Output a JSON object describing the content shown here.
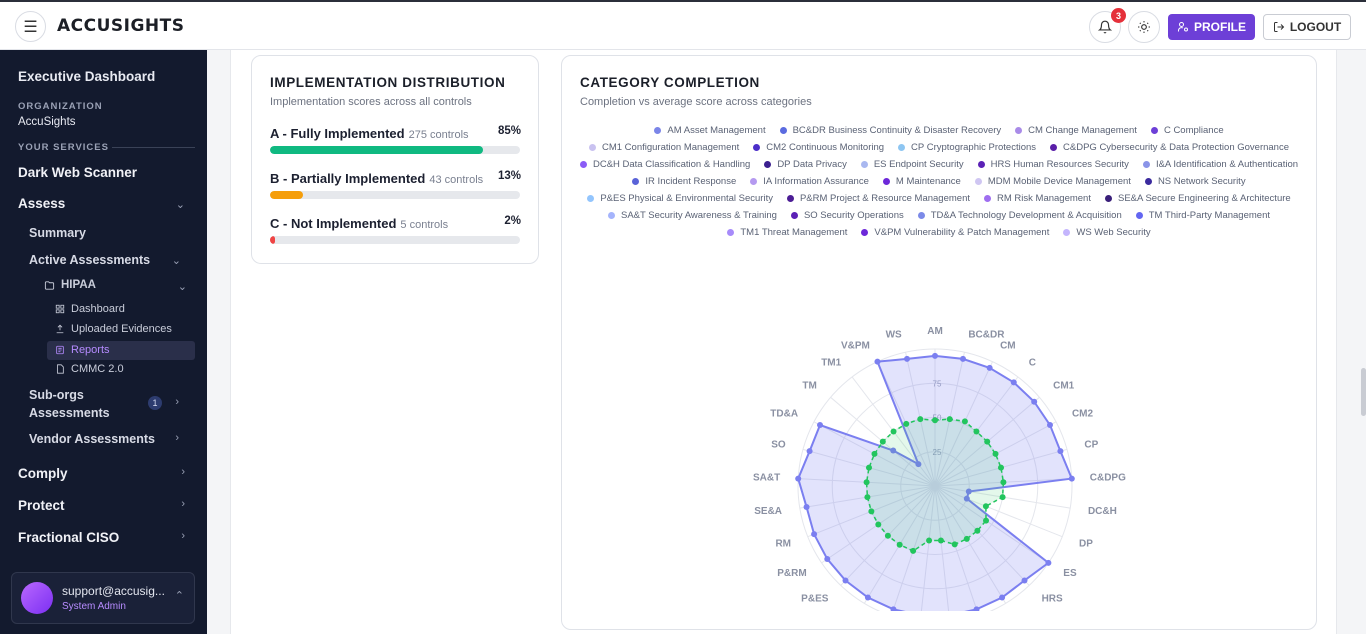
{
  "header": {
    "logo": "ACCUSIGHTS",
    "notification_count": "3",
    "profile_label": "PROFILE",
    "logout_label": "LOGOUT"
  },
  "sidebar": {
    "title": "Executive Dashboard",
    "org_label": "ORGANIZATION",
    "org_name": "AccuSights",
    "services_label": "YOUR SERVICES",
    "dark_web": "Dark Web Scanner",
    "assess": "Assess",
    "summary": "Summary",
    "active_assessments": "Active Assessments",
    "hipaa": "HIPAA",
    "dashboard": "Dashboard",
    "uploaded_evidences": "Uploaded Evidences",
    "reports": "Reports",
    "cmmc": "CMMC 2.0",
    "suborgs": "Sub-orgs\nAssessments",
    "suborgs_line1": "Sub-orgs",
    "suborgs_line2": "Assessments",
    "suborgs_count": "1",
    "vendor": "Vendor Assessments",
    "comply": "Comply",
    "protect": "Protect",
    "fractional": "Fractional CISO",
    "user_email": "support@accusig...",
    "user_role": "System Admin"
  },
  "impl": {
    "title": "IMPLEMENTATION DISTRIBUTION",
    "subtitle": "Implementation scores across all controls",
    "rows": [
      {
        "label": "A - Fully Implemented",
        "count": "275 controls",
        "pct": "85%",
        "value": 0.85,
        "color": "#10b981"
      },
      {
        "label": "B - Partially Implemented",
        "count": "43 controls",
        "pct": "13%",
        "value": 0.13,
        "color": "#f59e0b"
      },
      {
        "label": "C - Not Implemented",
        "count": "5 controls",
        "pct": "2%",
        "value": 0.02,
        "color": "#ef4444"
      }
    ]
  },
  "category": {
    "title": "CATEGORY COMPLETION",
    "subtitle": "Completion vs average score across categories",
    "legend": [
      {
        "label": "AM Asset Management",
        "color": "#7b85e8"
      },
      {
        "label": "BC&DR Business Continuity & Disaster Recovery",
        "color": "#5b6be0"
      },
      {
        "label": "CM Change Management",
        "color": "#a98be8"
      },
      {
        "label": "C Compliance",
        "color": "#6d3fd7"
      },
      {
        "label": "CM1 Configuration Management",
        "color": "#c9c2f0"
      },
      {
        "label": "CM2 Continuous Monitoring",
        "color": "#4c2ec9"
      },
      {
        "label": "CP Cryptographic Protections",
        "color": "#8ec6f2"
      },
      {
        "label": "C&DPG Cybersecurity & Data Protection Governance",
        "color": "#5a1ea8"
      },
      {
        "label": "DC&H Data Classification & Handling",
        "color": "#8b5cf6"
      },
      {
        "label": "DP Data Privacy",
        "color": "#3b1f8f"
      },
      {
        "label": "ES Endpoint Security",
        "color": "#a9b8f0"
      },
      {
        "label": "HRS Human Resources Security",
        "color": "#5b21b6"
      },
      {
        "label": "I&A Identification & Authentication",
        "color": "#8a94e8"
      },
      {
        "label": "IR Incident Response",
        "color": "#5a63d8"
      },
      {
        "label": "IA Information Assurance",
        "color": "#b59af0"
      },
      {
        "label": "M Maintenance",
        "color": "#6d28d9"
      },
      {
        "label": "MDM Mobile Device Management",
        "color": "#cfc6f2"
      },
      {
        "label": "NS Network Security",
        "color": "#3b2a9e"
      },
      {
        "label": "P&ES Physical & Environmental Security",
        "color": "#93c5fd"
      },
      {
        "label": "P&RM Project & Resource Management",
        "color": "#4c1d95"
      },
      {
        "label": "RM Risk Management",
        "color": "#9f6ef0"
      },
      {
        "label": "SE&A Secure Engineering & Architecture",
        "color": "#3a1f7a"
      },
      {
        "label": "SA&T Security Awareness & Training",
        "color": "#a5b4fc"
      },
      {
        "label": "SO Security Operations",
        "color": "#5b21b6"
      },
      {
        "label": "TD&A Technology Development & Acquisition",
        "color": "#7c8ae8"
      },
      {
        "label": "TM Third-Party Management",
        "color": "#6366f1"
      },
      {
        "label": "TM1 Threat Management",
        "color": "#a78bfa"
      },
      {
        "label": "V&PM Vulnerability & Patch Management",
        "color": "#6d28d9"
      },
      {
        "label": "WS Web Security",
        "color": "#c4b5fd"
      }
    ]
  },
  "chart_data": {
    "type": "radar",
    "title": "CATEGORY COMPLETION",
    "categories": [
      "AM",
      "BC&DR",
      "CM",
      "C",
      "CM1",
      "CM2",
      "CP",
      "C&DPG",
      "DC&H",
      "DP",
      "ES",
      "HRS",
      "I&A",
      "IR",
      "IA",
      "M",
      "MDM",
      "NS",
      "P&ES",
      "P&RM",
      "RM",
      "SE&A",
      "SA&T",
      "SO",
      "TD&A",
      "TM",
      "TM1",
      "V&PM",
      "WS"
    ],
    "ticks": [
      "25",
      "50",
      "75"
    ],
    "rlim": [
      0,
      100
    ],
    "series": [
      {
        "name": "Completion",
        "color": "#7b7ff0",
        "values": [
          95,
          95,
          95,
          95,
          95,
          95,
          95,
          100,
          25,
          25,
          100,
          95,
          95,
          95,
          95,
          95,
          95,
          95,
          95,
          95,
          95,
          95,
          100,
          95,
          95,
          40,
          20,
          100,
          95
        ]
      },
      {
        "name": "Average score",
        "color": "#22c55e",
        "values": [
          48,
          50,
          52,
          50,
          50,
          50,
          50,
          50,
          50,
          40,
          45,
          45,
          45,
          45,
          40,
          40,
          50,
          50,
          50,
          50,
          50,
          50,
          50,
          50,
          50,
          50,
          50,
          50,
          50
        ]
      }
    ]
  }
}
